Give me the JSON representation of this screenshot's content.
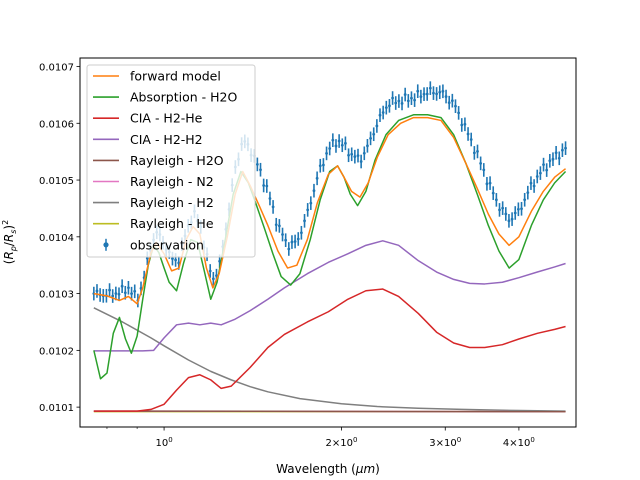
{
  "chart_data": {
    "type": "line",
    "title": "",
    "xlabel": "Wavelength ($\\mu m$)",
    "ylabel": "$(R_p/R_s)^2$",
    "xscale": "log",
    "xlim": [
      0.72,
      5.0
    ],
    "ylim": [
      0.010065,
      0.010715
    ],
    "yticks": [
      0.0101,
      0.0102,
      0.0103,
      0.0104,
      0.0105,
      0.0106,
      0.0107
    ],
    "ytick_labels": [
      "0.0101",
      "0.0102",
      "0.0103",
      "0.0104",
      "0.0105",
      "0.0106",
      "0.0107"
    ],
    "xticks_major": [
      1,
      2,
      3,
      4
    ],
    "xtick_labels": [
      "10^0",
      "2×10^0",
      "3×10^0",
      "4×10^0"
    ],
    "legend_position": "upper-left",
    "grid": false,
    "series": [
      {
        "name": "forward model",
        "color": "#ff7f0e",
        "style": "line",
        "points": [
          [
            0.76,
            0.0103
          ],
          [
            0.8,
            0.010296
          ],
          [
            0.84,
            0.010288
          ],
          [
            0.87,
            0.010295
          ],
          [
            0.9,
            0.010282
          ],
          [
            0.92,
            0.01031
          ],
          [
            0.95,
            0.010372
          ],
          [
            0.97,
            0.01039
          ],
          [
            1.0,
            0.01037
          ],
          [
            1.03,
            0.01034
          ],
          [
            1.06,
            0.010345
          ],
          [
            1.09,
            0.010395
          ],
          [
            1.12,
            0.010418
          ],
          [
            1.15,
            0.010405
          ],
          [
            1.18,
            0.010345
          ],
          [
            1.21,
            0.01031
          ],
          [
            1.24,
            0.010335
          ],
          [
            1.28,
            0.0104
          ],
          [
            1.32,
            0.010475
          ],
          [
            1.36,
            0.010515
          ],
          [
            1.4,
            0.01049
          ],
          [
            1.45,
            0.010455
          ],
          [
            1.5,
            0.01042
          ],
          [
            1.56,
            0.010375
          ],
          [
            1.62,
            0.010345
          ],
          [
            1.68,
            0.01035
          ],
          [
            1.75,
            0.010395
          ],
          [
            1.82,
            0.01046
          ],
          [
            1.9,
            0.01051
          ],
          [
            1.97,
            0.010525
          ],
          [
            2.02,
            0.010505
          ],
          [
            2.08,
            0.01048
          ],
          [
            2.15,
            0.01047
          ],
          [
            2.22,
            0.010495
          ],
          [
            2.3,
            0.01054
          ],
          [
            2.4,
            0.01058
          ],
          [
            2.52,
            0.0106
          ],
          [
            2.65,
            0.01061
          ],
          [
            2.8,
            0.01061
          ],
          [
            2.95,
            0.010605
          ],
          [
            3.1,
            0.010575
          ],
          [
            3.25,
            0.01053
          ],
          [
            3.4,
            0.010485
          ],
          [
            3.55,
            0.01044
          ],
          [
            3.7,
            0.010405
          ],
          [
            3.85,
            0.010385
          ],
          [
            4.0,
            0.0104
          ],
          [
            4.2,
            0.010445
          ],
          [
            4.4,
            0.01048
          ],
          [
            4.6,
            0.010505
          ],
          [
            4.8,
            0.01052
          ]
        ]
      },
      {
        "name": "Absorption - H2O",
        "color": "#2ca02c",
        "style": "line",
        "points": [
          [
            0.76,
            0.0102
          ],
          [
            0.78,
            0.01015
          ],
          [
            0.8,
            0.01016
          ],
          [
            0.82,
            0.01023
          ],
          [
            0.84,
            0.010258
          ],
          [
            0.86,
            0.01022
          ],
          [
            0.88,
            0.010195
          ],
          [
            0.9,
            0.010225
          ],
          [
            0.92,
            0.01029
          ],
          [
            0.94,
            0.01035
          ],
          [
            0.96,
            0.010385
          ],
          [
            0.98,
            0.010372
          ],
          [
            1.0,
            0.010345
          ],
          [
            1.02,
            0.01032
          ],
          [
            1.05,
            0.010305
          ],
          [
            1.08,
            0.010355
          ],
          [
            1.11,
            0.010395
          ],
          [
            1.14,
            0.01039
          ],
          [
            1.17,
            0.01034
          ],
          [
            1.2,
            0.01029
          ],
          [
            1.23,
            0.01032
          ],
          [
            1.27,
            0.010395
          ],
          [
            1.31,
            0.010475
          ],
          [
            1.35,
            0.010515
          ],
          [
            1.39,
            0.010495
          ],
          [
            1.43,
            0.01046
          ],
          [
            1.48,
            0.010415
          ],
          [
            1.53,
            0.01037
          ],
          [
            1.58,
            0.01033
          ],
          [
            1.64,
            0.010315
          ],
          [
            1.7,
            0.010335
          ],
          [
            1.77,
            0.010395
          ],
          [
            1.84,
            0.010465
          ],
          [
            1.91,
            0.010515
          ],
          [
            1.97,
            0.010525
          ],
          [
            2.02,
            0.010505
          ],
          [
            2.07,
            0.010475
          ],
          [
            2.13,
            0.010455
          ],
          [
            2.2,
            0.01048
          ],
          [
            2.28,
            0.010535
          ],
          [
            2.38,
            0.01058
          ],
          [
            2.5,
            0.010605
          ],
          [
            2.65,
            0.010615
          ],
          [
            2.8,
            0.010615
          ],
          [
            2.95,
            0.01061
          ],
          [
            3.1,
            0.01058
          ],
          [
            3.25,
            0.01053
          ],
          [
            3.4,
            0.010475
          ],
          [
            3.55,
            0.01042
          ],
          [
            3.7,
            0.010375
          ],
          [
            3.85,
            0.010345
          ],
          [
            4.0,
            0.01036
          ],
          [
            4.2,
            0.01042
          ],
          [
            4.4,
            0.010465
          ],
          [
            4.6,
            0.010495
          ],
          [
            4.8,
            0.010515
          ]
        ]
      },
      {
        "name": "CIA - H2-He",
        "color": "#d62728",
        "style": "line",
        "points": [
          [
            0.76,
            0.010093
          ],
          [
            0.85,
            0.010093
          ],
          [
            0.9,
            0.010093
          ],
          [
            0.95,
            0.010096
          ],
          [
            1.0,
            0.010105
          ],
          [
            1.05,
            0.01013
          ],
          [
            1.1,
            0.010152
          ],
          [
            1.15,
            0.010157
          ],
          [
            1.2,
            0.010148
          ],
          [
            1.25,
            0.010133
          ],
          [
            1.3,
            0.010137
          ],
          [
            1.4,
            0.01017
          ],
          [
            1.5,
            0.010205
          ],
          [
            1.6,
            0.010228
          ],
          [
            1.75,
            0.01025
          ],
          [
            1.9,
            0.010268
          ],
          [
            2.05,
            0.01029
          ],
          [
            2.2,
            0.010305
          ],
          [
            2.35,
            0.010308
          ],
          [
            2.5,
            0.010295
          ],
          [
            2.7,
            0.010265
          ],
          [
            2.9,
            0.010232
          ],
          [
            3.1,
            0.010213
          ],
          [
            3.3,
            0.010205
          ],
          [
            3.5,
            0.010205
          ],
          [
            3.75,
            0.01021
          ],
          [
            4.0,
            0.01022
          ],
          [
            4.3,
            0.01023
          ],
          [
            4.6,
            0.010237
          ],
          [
            4.8,
            0.010242
          ]
        ]
      },
      {
        "name": "CIA - H2-H2",
        "color": "#9467bd",
        "style": "line",
        "points": [
          [
            0.76,
            0.010199
          ],
          [
            0.85,
            0.010199
          ],
          [
            0.92,
            0.010199
          ],
          [
            0.96,
            0.0102
          ],
          [
            1.0,
            0.010222
          ],
          [
            1.05,
            0.010245
          ],
          [
            1.1,
            0.010248
          ],
          [
            1.15,
            0.010245
          ],
          [
            1.2,
            0.010248
          ],
          [
            1.25,
            0.010245
          ],
          [
            1.32,
            0.010255
          ],
          [
            1.4,
            0.01027
          ],
          [
            1.5,
            0.01029
          ],
          [
            1.6,
            0.01031
          ],
          [
            1.75,
            0.010335
          ],
          [
            1.9,
            0.010355
          ],
          [
            2.05,
            0.01037
          ],
          [
            2.2,
            0.010385
          ],
          [
            2.35,
            0.010393
          ],
          [
            2.5,
            0.010385
          ],
          [
            2.7,
            0.010358
          ],
          [
            2.9,
            0.010338
          ],
          [
            3.1,
            0.010325
          ],
          [
            3.3,
            0.010318
          ],
          [
            3.5,
            0.010317
          ],
          [
            3.75,
            0.01032
          ],
          [
            4.0,
            0.010328
          ],
          [
            4.3,
            0.010338
          ],
          [
            4.6,
            0.010347
          ],
          [
            4.8,
            0.010353
          ]
        ]
      },
      {
        "name": "Rayleigh - H2O",
        "color": "#8c564b",
        "style": "line",
        "points": [
          [
            0.76,
            0.010093
          ],
          [
            4.8,
            0.010092
          ]
        ]
      },
      {
        "name": "Rayleigh - N2",
        "color": "#e377c2",
        "style": "line",
        "points": [
          [
            0.76,
            0.010093
          ],
          [
            4.8,
            0.010092
          ]
        ]
      },
      {
        "name": "Rayleigh - H2",
        "color": "#7f7f7f",
        "style": "line",
        "points": [
          [
            0.76,
            0.010275
          ],
          [
            0.85,
            0.01025
          ],
          [
            0.95,
            0.010222
          ],
          [
            1.0,
            0.010208
          ],
          [
            1.1,
            0.010183
          ],
          [
            1.2,
            0.010163
          ],
          [
            1.3,
            0.010148
          ],
          [
            1.4,
            0.010136
          ],
          [
            1.5,
            0.010127
          ],
          [
            1.7,
            0.010115
          ],
          [
            2.0,
            0.010106
          ],
          [
            2.3,
            0.010101
          ],
          [
            2.7,
            0.010098
          ],
          [
            3.2,
            0.010096
          ],
          [
            4.0,
            0.010094
          ],
          [
            4.8,
            0.010093
          ]
        ]
      },
      {
        "name": "Rayleigh - He",
        "color": "#bcbd22",
        "style": "line",
        "points": [
          [
            0.76,
            0.010092
          ],
          [
            4.8,
            0.010092
          ]
        ]
      },
      {
        "name": "observation",
        "color": "#1f77b4",
        "style": "errorbar",
        "yerr": 7.5e-06,
        "points": [
          [
            0.76,
            0.0103
          ],
          [
            0.8,
            0.010298
          ],
          [
            0.84,
            0.010302
          ],
          [
            0.87,
            0.01031
          ],
          [
            0.9,
            0.01029
          ],
          [
            0.92,
            0.010318
          ],
          [
            0.95,
            0.010385
          ],
          [
            0.97,
            0.010408
          ],
          [
            1.0,
            0.01039
          ],
          [
            1.03,
            0.01036
          ],
          [
            1.06,
            0.01036
          ],
          [
            1.09,
            0.01041
          ],
          [
            1.12,
            0.01044
          ],
          [
            1.15,
            0.010425
          ],
          [
            1.18,
            0.010365
          ],
          [
            1.21,
            0.010325
          ],
          [
            1.24,
            0.010345
          ],
          [
            1.28,
            0.01043
          ],
          [
            1.32,
            0.01052
          ],
          [
            1.36,
            0.01057
          ],
          [
            1.4,
            0.010555
          ],
          [
            1.45,
            0.01052
          ],
          [
            1.5,
            0.01048
          ],
          [
            1.56,
            0.01042
          ],
          [
            1.62,
            0.010385
          ],
          [
            1.68,
            0.01039
          ],
          [
            1.75,
            0.01044
          ],
          [
            1.82,
            0.010505
          ],
          [
            1.9,
            0.010555
          ],
          [
            1.97,
            0.01057
          ],
          [
            2.02,
            0.01056
          ],
          [
            2.08,
            0.010545
          ],
          [
            2.15,
            0.010535
          ],
          [
            2.22,
            0.01056
          ],
          [
            2.3,
            0.0106
          ],
          [
            2.4,
            0.010635
          ],
          [
            2.52,
            0.01064
          ],
          [
            2.65,
            0.010645
          ],
          [
            2.8,
            0.010655
          ],
          [
            2.95,
            0.010655
          ],
          [
            3.1,
            0.010635
          ],
          [
            3.25,
            0.01059
          ],
          [
            3.4,
            0.010545
          ],
          [
            3.55,
            0.010495
          ],
          [
            3.7,
            0.010455
          ],
          [
            3.85,
            0.01043
          ],
          [
            4.0,
            0.010445
          ],
          [
            4.2,
            0.01049
          ],
          [
            4.4,
            0.01052
          ],
          [
            4.6,
            0.01054
          ],
          [
            4.8,
            0.010555
          ]
        ]
      }
    ]
  }
}
